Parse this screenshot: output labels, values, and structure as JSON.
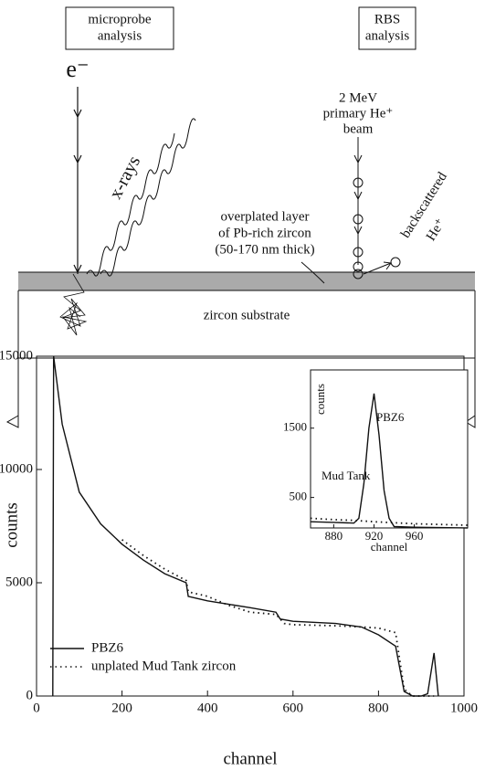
{
  "diagram": {
    "left_box": [
      "microprobe",
      "analysis"
    ],
    "right_box": [
      "RBS",
      "analysis"
    ],
    "electron": "e⁻",
    "xrays": "x-rays",
    "beam": [
      "2 MeV",
      "primary He⁺",
      "beam"
    ],
    "backscattered": [
      "backscattered",
      "He⁺"
    ],
    "layer": [
      "overplated layer",
      "of Pb-rich zircon",
      "(50-170 nm thick)"
    ],
    "substrate": "zircon substrate"
  },
  "chart_data": [
    {
      "type": "line",
      "xlabel": "channel",
      "ylabel": "counts",
      "xlim": [
        0,
        1000
      ],
      "ylim": [
        0,
        15000
      ],
      "xticks": [
        0,
        200,
        400,
        600,
        800,
        1000
      ],
      "yticks": [
        0,
        5000,
        10000,
        15000
      ],
      "legend": "lower left",
      "series": [
        {
          "name": "PBZ6",
          "color": "#111111",
          "style": "solid",
          "x": [
            38,
            40,
            60,
            100,
            150,
            200,
            250,
            300,
            350,
            355,
            400,
            450,
            500,
            560,
            570,
            600,
            700,
            760,
            800,
            840,
            860,
            880,
            900,
            915,
            930,
            940
          ],
          "values": [
            0,
            15000,
            12000,
            9000,
            7600,
            6700,
            6000,
            5400,
            5000,
            4400,
            4200,
            4050,
            3900,
            3700,
            3400,
            3300,
            3200,
            3050,
            2700,
            2200,
            200,
            0,
            0,
            100,
            1900,
            0
          ]
        },
        {
          "name": "unplated Mud Tank zircon",
          "color": "#111111",
          "style": "dotted",
          "x": [
            200,
            250,
            300,
            350,
            355,
            400,
            450,
            500,
            560,
            580,
            600,
            700,
            760,
            800,
            840,
            860,
            880,
            930
          ],
          "values": [
            6900,
            6200,
            5600,
            5100,
            4600,
            4400,
            4000,
            3700,
            3600,
            3200,
            3150,
            3100,
            3050,
            3000,
            2800,
            300,
            0,
            0
          ]
        }
      ]
    },
    {
      "type": "line",
      "xlabel": "channel",
      "ylabel": "counts",
      "xlim": [
        857,
        1013
      ],
      "ylim": [
        60,
        2340
      ],
      "xticks": [
        880,
        920,
        960
      ],
      "yticks": [
        500,
        1500
      ],
      "series": [
        {
          "name": "PBZ6",
          "color": "#111111",
          "style": "solid",
          "x": [
            857,
            880,
            900,
            905,
            910,
            915,
            920,
            925,
            930,
            935,
            940,
            960,
            1013
          ],
          "values": [
            150,
            140,
            130,
            200,
            700,
            1500,
            2000,
            1400,
            600,
            200,
            80,
            70,
            60
          ]
        },
        {
          "name": "Mud Tank",
          "color": "#111111",
          "style": "dotted",
          "x": [
            857,
            880,
            900,
            920,
            960,
            1013
          ],
          "values": [
            200,
            180,
            170,
            150,
            120,
            100
          ]
        }
      ]
    }
  ]
}
